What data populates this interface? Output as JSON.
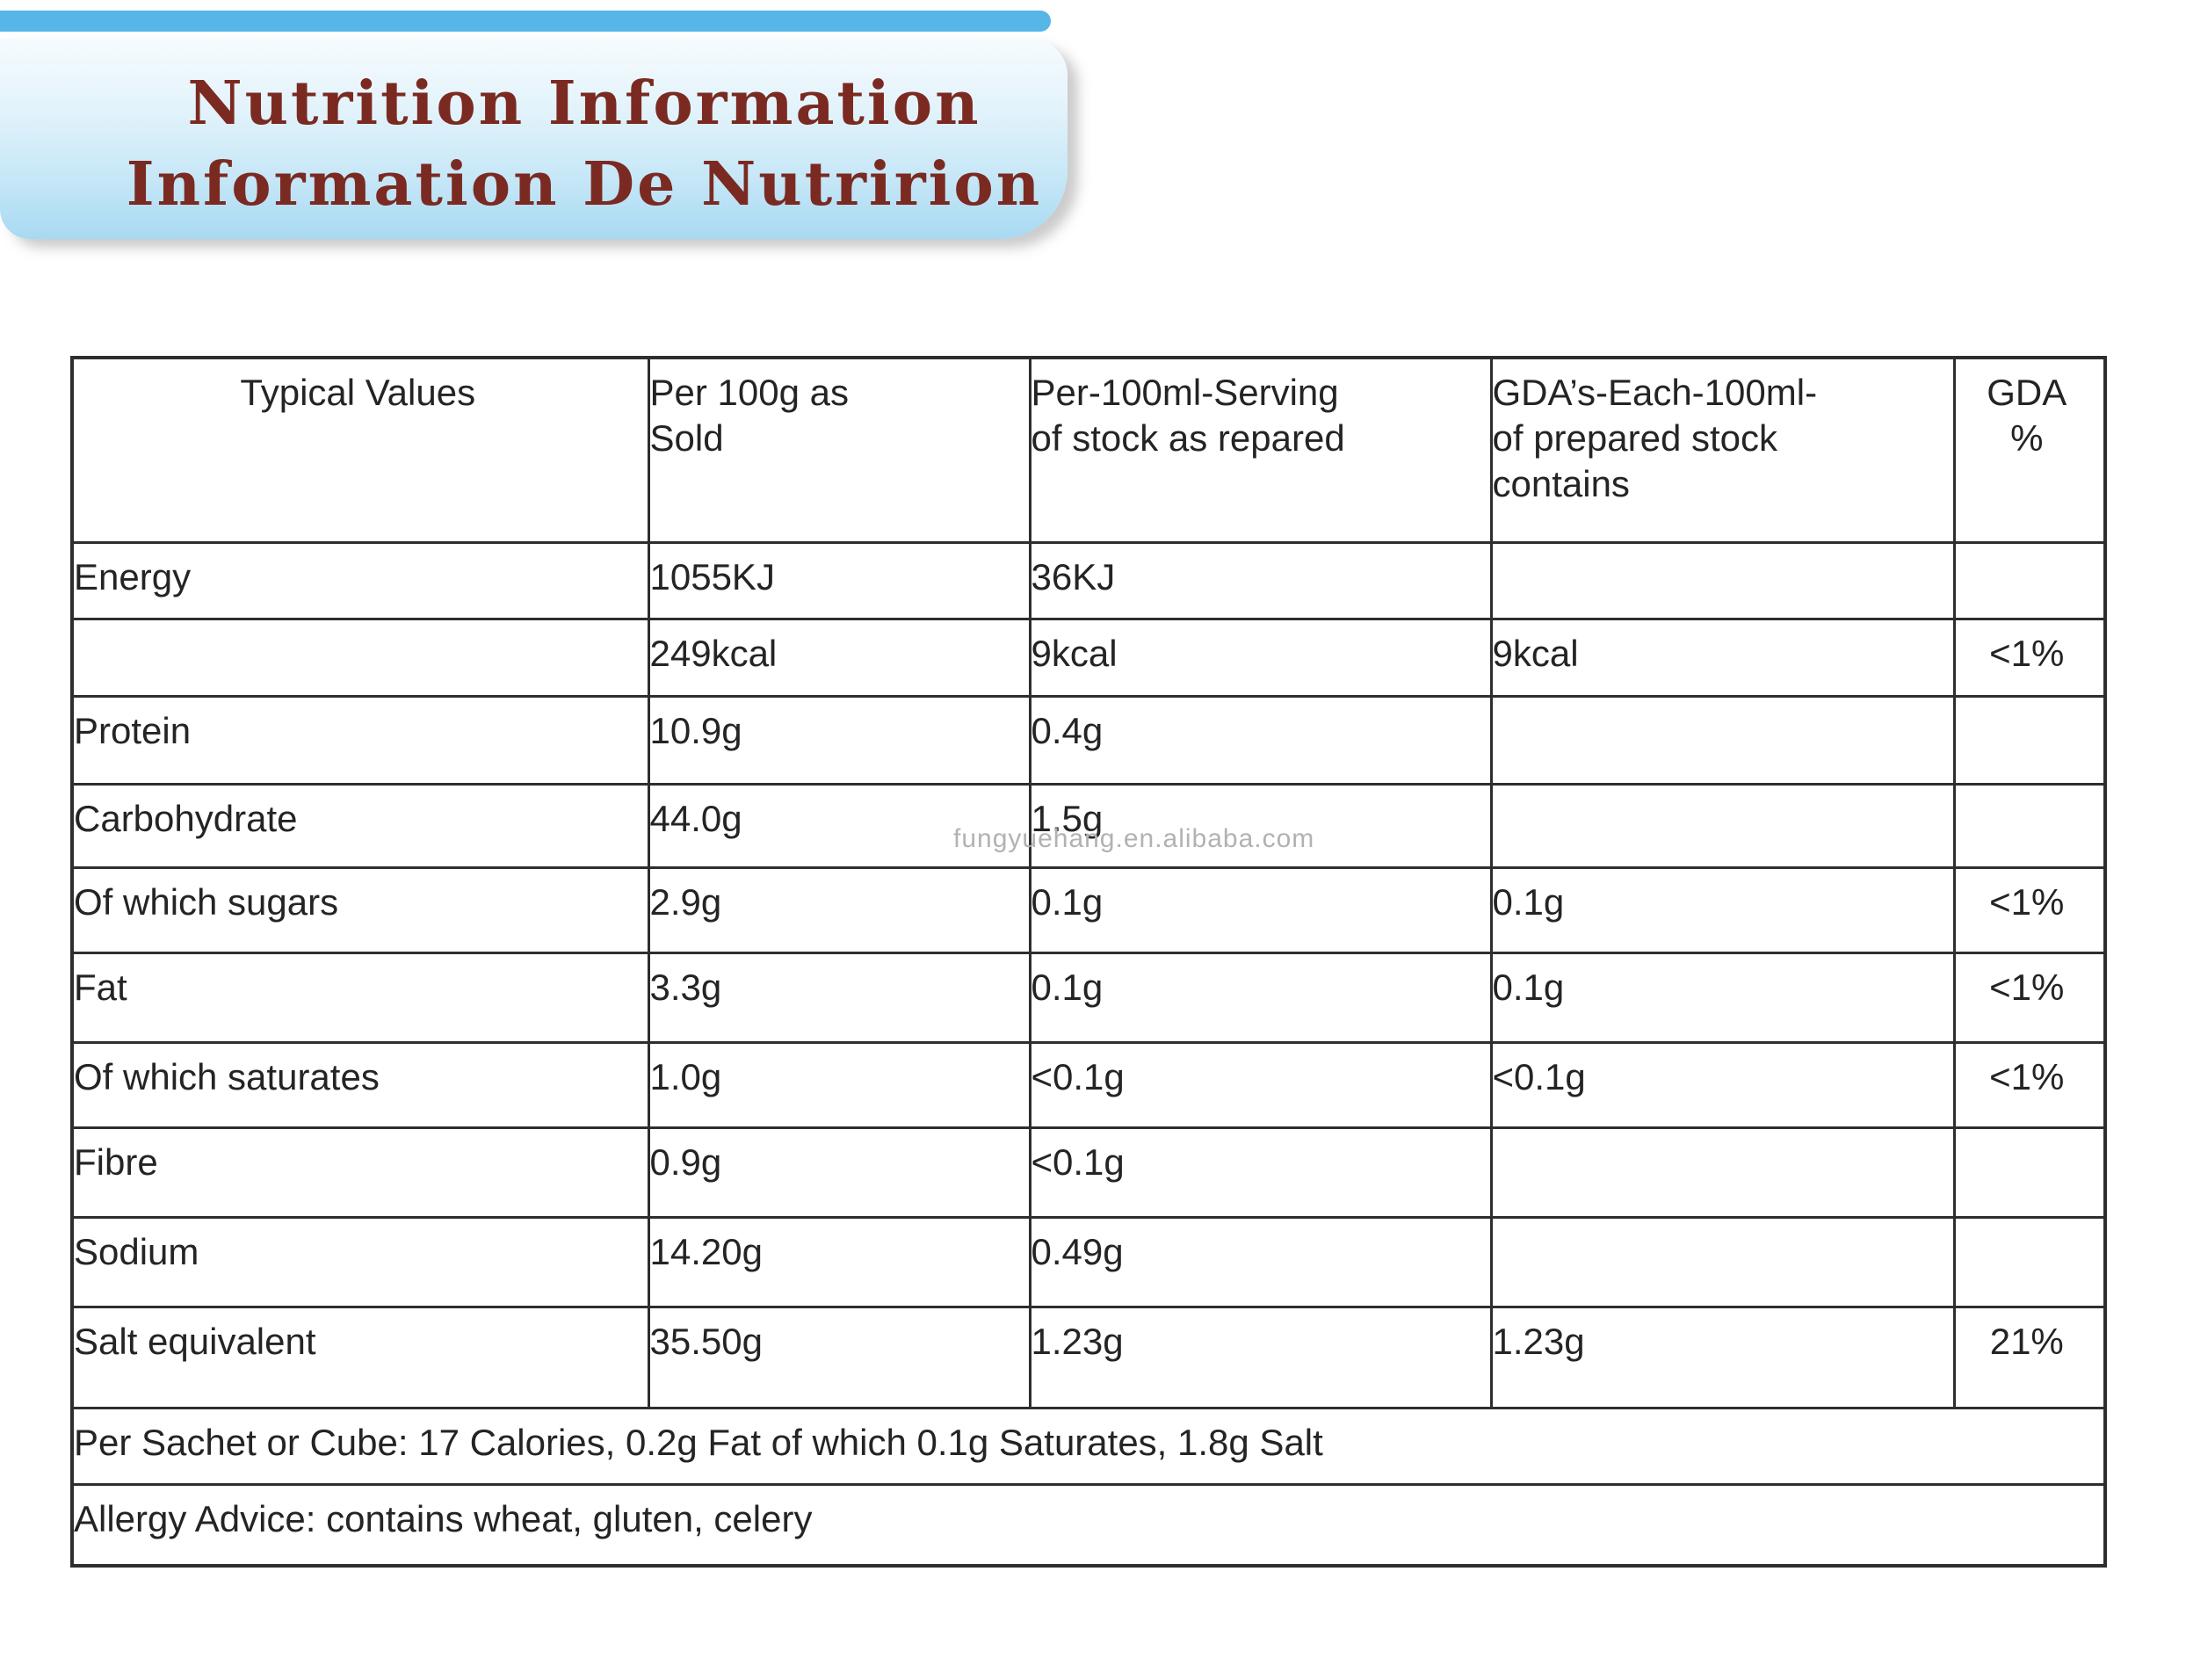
{
  "banner": {
    "title_line1": "Nutrition Information",
    "title_line2": "Information De Nutririon",
    "title_color": "#7b2a22",
    "bar_color": "#55b6e7",
    "gradient_top": "#f6fbfe",
    "gradient_bottom": "#a8d9f2"
  },
  "watermark": {
    "text": "fungyuehang.en.alibaba.com",
    "color": "#b2b2b4"
  },
  "table": {
    "border_color": "#2e2e2e",
    "headers": [
      "Typical Values",
      "Per 100g as\nSold",
      "Per-100ml-Serving\nof stock as repared",
      "GDA’s-Each-100ml-\nof prepared stock\ncontains",
      "GDA\n%"
    ],
    "rows": [
      [
        "Energy",
        "1055KJ",
        "36KJ",
        "",
        ""
      ],
      [
        "",
        "249kcal",
        "9kcal",
        "9kcal",
        "<1%"
      ],
      [
        "Protein",
        "10.9g",
        "0.4g",
        "",
        ""
      ],
      [
        "Carbohydrate",
        "44.0g",
        "1.5g",
        "",
        ""
      ],
      [
        "Of which sugars",
        "2.9g",
        "0.1g",
        "0.1g",
        "<1%"
      ],
      [
        "Fat",
        "3.3g",
        "0.1g",
        "0.1g",
        "<1%"
      ],
      [
        "Of which saturates",
        "1.0g",
        "<0.1g",
        "<0.1g",
        "<1%"
      ],
      [
        "Fibre",
        "0.9g",
        "<0.1g",
        "",
        ""
      ],
      [
        "Sodium",
        "14.20g",
        "0.49g",
        "",
        ""
      ],
      [
        "Salt equivalent",
        "35.50g",
        "1.23g",
        "1.23g",
        "21%"
      ]
    ],
    "footer_rows": [
      "Per Sachet or Cube: 17 Calories, 0.2g Fat of which 0.1g Saturates, 1.8g Salt",
      "Allergy Advice: contains wheat, gluten, celery"
    ]
  }
}
